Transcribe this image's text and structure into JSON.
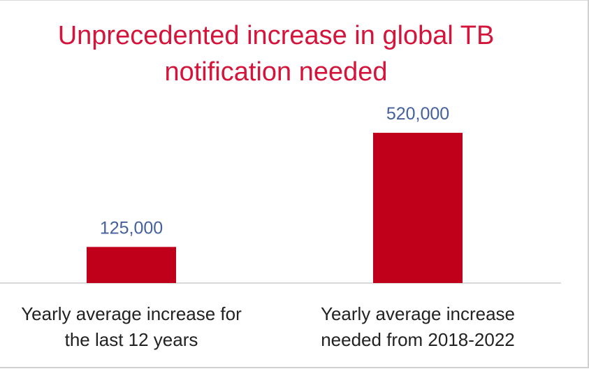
{
  "chart_data": {
    "type": "bar",
    "title_lines": [
      "Unprecedented increase in global TB",
      "notification needed"
    ],
    "categories": [
      [
        "Yearly average increase for",
        "the last 12 years"
      ],
      [
        "Yearly average increase",
        "needed from 2018-2022"
      ]
    ],
    "values": [
      125000,
      520000
    ],
    "data_labels": [
      "125,000",
      "520,000"
    ],
    "ylim": [
      0,
      520000
    ],
    "grid": false,
    "legend": "none",
    "bar_color": "#c0001a",
    "title_color": "#d4143a",
    "data_label_color": "#44619e"
  }
}
